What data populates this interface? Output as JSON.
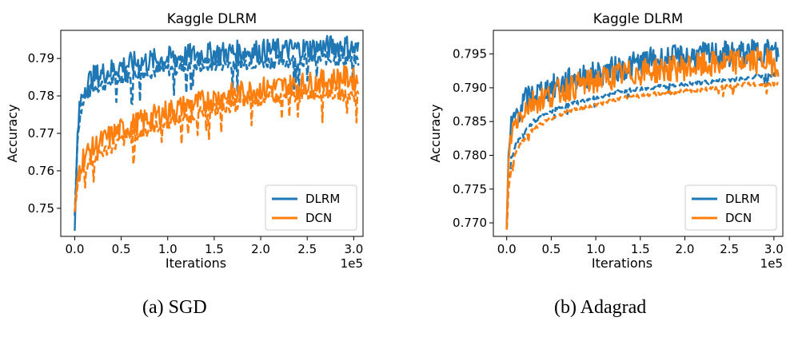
{
  "chart_data": [
    {
      "type": "line",
      "title": "Kaggle DLRM",
      "xlabel": "Iterations",
      "ylabel": "Accuracy",
      "x_offset_label": "1e5",
      "xlim": [
        -0.15,
        3.1
      ],
      "ylim": [
        0.7425,
        0.7975
      ],
      "xticks": [
        0.0,
        0.5,
        1.0,
        1.5,
        2.0,
        2.5,
        3.0
      ],
      "xtick_labels": [
        "0.0",
        "0.5",
        "1.0",
        "1.5",
        "2.0",
        "2.5",
        "3.0"
      ],
      "yticks": [
        0.75,
        0.76,
        0.77,
        0.78,
        0.79
      ],
      "ytick_labels": [
        "0.75",
        "0.76",
        "0.77",
        "0.78",
        "0.79"
      ],
      "legend": [
        "DLRM",
        "DCN"
      ],
      "legend_loc": "lower-right",
      "caption": "(a) SGD",
      "series": [
        {
          "name": "DLRM",
          "style": "solid",
          "color": "#1f77b4",
          "x": [
            0.0,
            0.03,
            0.06,
            0.1,
            0.15,
            0.2,
            0.3,
            0.4,
            0.5,
            0.7,
            1.0,
            1.3,
            1.6,
            2.0,
            2.4,
            2.7,
            2.9,
            3.05
          ],
          "y": [
            0.744,
            0.77,
            0.778,
            0.782,
            0.784,
            0.785,
            0.786,
            0.787,
            0.788,
            0.789,
            0.79,
            0.791,
            0.7915,
            0.792,
            0.7925,
            0.793,
            0.7935,
            0.792
          ]
        },
        {
          "name": "DLRM (dashed)",
          "style": "dashed",
          "color": "#1f77b4",
          "x": [
            0.0,
            0.03,
            0.06,
            0.1,
            0.15,
            0.2,
            0.3,
            0.4,
            0.5,
            0.7,
            1.0,
            1.3,
            1.6,
            2.0,
            2.4,
            2.7,
            3.05
          ],
          "y": [
            0.748,
            0.768,
            0.776,
            0.779,
            0.781,
            0.782,
            0.783,
            0.784,
            0.785,
            0.786,
            0.787,
            0.788,
            0.7885,
            0.789,
            0.7895,
            0.79,
            0.7895
          ]
        },
        {
          "name": "DCN",
          "style": "solid",
          "color": "#ff7f0e",
          "x": [
            0.0,
            0.03,
            0.06,
            0.1,
            0.2,
            0.3,
            0.5,
            0.7,
            1.0,
            1.3,
            1.6,
            2.0,
            2.4,
            2.7,
            2.9,
            3.05
          ],
          "y": [
            0.749,
            0.758,
            0.762,
            0.764,
            0.766,
            0.768,
            0.771,
            0.773,
            0.776,
            0.778,
            0.78,
            0.782,
            0.783,
            0.784,
            0.785,
            0.784
          ]
        },
        {
          "name": "DCN (dashed)",
          "style": "dashed",
          "color": "#ff7f0e",
          "x": [
            0.0,
            0.03,
            0.06,
            0.1,
            0.2,
            0.3,
            0.5,
            0.7,
            1.0,
            1.3,
            1.6,
            2.0,
            2.4,
            2.7,
            3.05
          ],
          "y": [
            0.749,
            0.756,
            0.759,
            0.761,
            0.763,
            0.765,
            0.768,
            0.77,
            0.773,
            0.775,
            0.777,
            0.779,
            0.78,
            0.781,
            0.78
          ]
        }
      ]
    },
    {
      "type": "line",
      "title": "Kaggle DLRM",
      "xlabel": "Iterations",
      "ylabel": "Accuracy",
      "x_offset_label": "1e5",
      "xlim": [
        -0.15,
        3.1
      ],
      "ylim": [
        0.768,
        0.7985
      ],
      "xticks": [
        0.0,
        0.5,
        1.0,
        1.5,
        2.0,
        2.5,
        3.0
      ],
      "xtick_labels": [
        "0.0",
        "0.5",
        "1.0",
        "1.5",
        "2.0",
        "2.5",
        "3.0"
      ],
      "yticks": [
        0.77,
        0.775,
        0.78,
        0.785,
        0.79,
        0.795
      ],
      "ytick_labels": [
        "0.770",
        "0.775",
        "0.780",
        "0.785",
        "0.790",
        "0.795"
      ],
      "legend": [
        "DLRM",
        "DCN"
      ],
      "legend_loc": "lower-right",
      "caption": "(b) Adagrad",
      "series": [
        {
          "name": "DLRM",
          "style": "solid",
          "color": "#1f77b4",
          "x": [
            0.0,
            0.02,
            0.05,
            0.1,
            0.2,
            0.3,
            0.5,
            0.7,
            1.0,
            1.3,
            1.6,
            2.0,
            2.4,
            2.7,
            2.9,
            3.05
          ],
          "y": [
            0.7695,
            0.78,
            0.784,
            0.786,
            0.788,
            0.789,
            0.79,
            0.791,
            0.792,
            0.793,
            0.794,
            0.7945,
            0.795,
            0.795,
            0.7955,
            0.795
          ]
        },
        {
          "name": "DLRM (dashed)",
          "style": "dashed",
          "color": "#1f77b4",
          "x": [
            0.0,
            0.02,
            0.05,
            0.1,
            0.2,
            0.3,
            0.5,
            0.7,
            1.0,
            1.3,
            1.6,
            2.0,
            2.4,
            2.7,
            3.05
          ],
          "y": [
            0.769,
            0.776,
            0.7795,
            0.7815,
            0.7835,
            0.785,
            0.7865,
            0.7875,
            0.7885,
            0.7895,
            0.79,
            0.7905,
            0.791,
            0.7915,
            0.792
          ]
        },
        {
          "name": "DCN",
          "style": "solid",
          "color": "#ff7f0e",
          "x": [
            0.0,
            0.02,
            0.05,
            0.1,
            0.2,
            0.3,
            0.5,
            0.7,
            1.0,
            1.3,
            1.6,
            2.0,
            2.4,
            2.7,
            2.9,
            3.05
          ],
          "y": [
            0.7695,
            0.779,
            0.783,
            0.785,
            0.787,
            0.788,
            0.789,
            0.79,
            0.791,
            0.792,
            0.7925,
            0.793,
            0.7935,
            0.794,
            0.794,
            0.7935
          ]
        },
        {
          "name": "DCN (dashed)",
          "style": "dashed",
          "color": "#ff7f0e",
          "x": [
            0.0,
            0.02,
            0.05,
            0.1,
            0.2,
            0.3,
            0.5,
            0.7,
            1.0,
            1.3,
            1.6,
            2.0,
            2.4,
            2.7,
            3.05
          ],
          "y": [
            0.769,
            0.775,
            0.778,
            0.7805,
            0.7825,
            0.784,
            0.7855,
            0.7865,
            0.7875,
            0.7885,
            0.789,
            0.7895,
            0.79,
            0.7905,
            0.7905
          ]
        }
      ]
    }
  ]
}
